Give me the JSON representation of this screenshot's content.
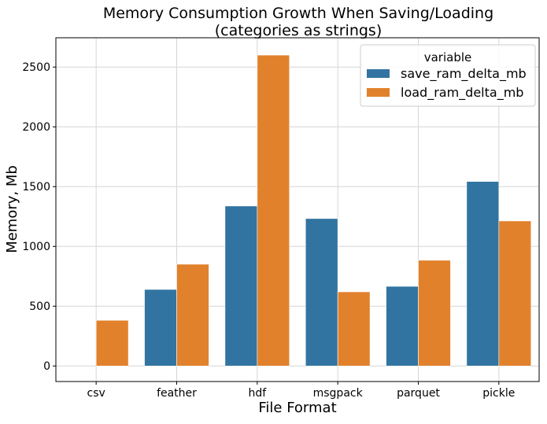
{
  "chart_data": {
    "type": "bar",
    "title": "Memory Consumption Growth When Saving/Loading",
    "subtitle": "(categories as strings)",
    "xlabel": "File Format",
    "ylabel": "Memory, Mb",
    "categories": [
      "csv",
      "feather",
      "hdf",
      "msgpack",
      "parquet",
      "pickle"
    ],
    "series": [
      {
        "name": "save_ram_delta_mb",
        "color": "#3274a1",
        "values": [
          0,
          640,
          1338,
          1233,
          666,
          1543
        ]
      },
      {
        "name": "load_ram_delta_mb",
        "color": "#e1812c",
        "values": [
          382,
          851,
          2600,
          620,
          884,
          1213
        ]
      }
    ],
    "ylim": [
      -130,
      2745
    ],
    "yticks": [
      0,
      500,
      1000,
      1500,
      2000,
      2500
    ],
    "grid": true,
    "legend": {
      "title": "variable",
      "placement": "top-right"
    }
  }
}
